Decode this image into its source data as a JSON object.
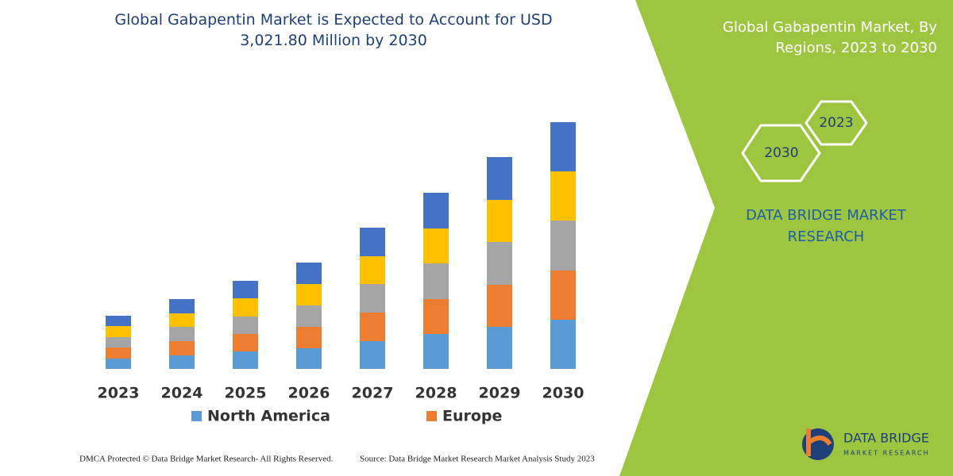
{
  "chart_data": {
    "type": "stacked-bar",
    "title": "Global Gabapentin Market is Expected to Account for USD 3,021.80 Million by 2030",
    "categories": [
      "2023",
      "2024",
      "2025",
      "2026",
      "2027",
      "2028",
      "2029",
      "2030"
    ],
    "series": [
      {
        "name": "North America",
        "color": "#5b9bd5",
        "values": [
          13,
          17,
          22,
          26,
          35,
          44,
          53,
          62
        ]
      },
      {
        "name": "Europe",
        "color": "#ed7d31",
        "values": [
          14,
          18,
          22,
          27,
          36,
          44,
          53,
          62
        ]
      },
      {
        "color": "#a5a5a5",
        "values": [
          13,
          18,
          22,
          27,
          36,
          45,
          54,
          63
        ]
      },
      {
        "color": "#ffc000",
        "values": [
          14,
          17,
          23,
          27,
          35,
          44,
          53,
          62
        ]
      },
      {
        "color": "#4472c4",
        "values": [
          13,
          18,
          22,
          27,
          36,
          45,
          54,
          62
        ]
      }
    ]
  },
  "side_panel": {
    "title": "Global Gabapentin Market, By Regions, 2023 to 2030",
    "hex_start": "2023",
    "hex_end": "2030",
    "brand": "DATA BRIDGE MARKET RESEARCH"
  },
  "footer": {
    "left": "DMCA Protected © Data Bridge Market Research-  All Rights Reserved.",
    "right": "Source: Data Bridge Market Research  Market Analysis Study 2023"
  },
  "logo": {
    "name": "DATA BRIDGE",
    "tagline": "MARKET RESEARCH"
  }
}
